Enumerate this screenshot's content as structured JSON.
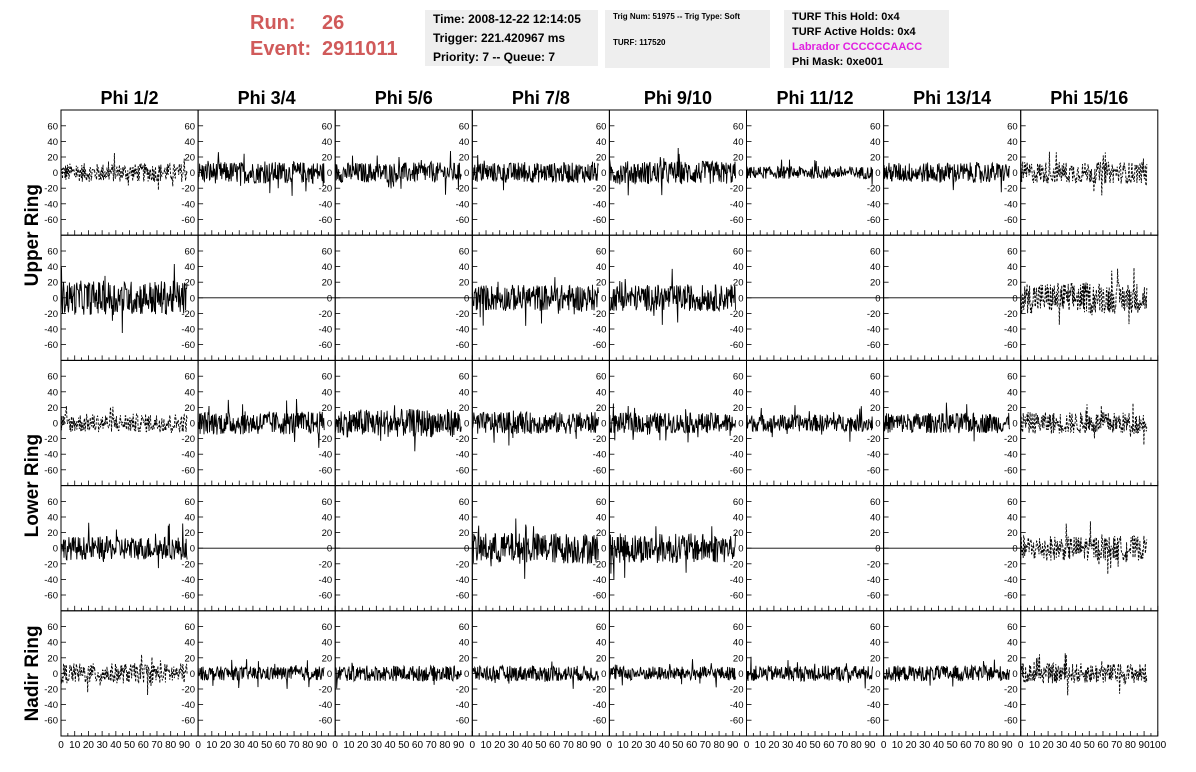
{
  "header": {
    "run_label": "Run:",
    "run_value": "26",
    "event_label": "Event:",
    "event_value": "2911011",
    "time": "Time: 2008-12-22 12:14:05",
    "trigger": "Trigger: 221.420967 ms",
    "priority": "Priority: 7 -- Queue: 7",
    "trig_num": "Trig Num: 51975 -- Trig Type: Soft",
    "turf": "TURF: 117520",
    "turf_this_hold": "TURF This Hold: 0x4",
    "turf_active_holds": "TURF Active Holds: 0x4",
    "labrador": "Labrador CCCCCCAACC",
    "phi_mask": "Phi Mask: 0xe001",
    "colors": {
      "run_text": "#d05a5a",
      "labrador": "#e020e0",
      "box_bg": "#eeeeee"
    }
  },
  "chart_data": {
    "type": "line",
    "columns": [
      "Phi 1/2",
      "Phi 3/4",
      "Phi 5/6",
      "Phi 7/8",
      "Phi 9/10",
      "Phi 11/12",
      "Phi 13/14",
      "Phi 15/16"
    ],
    "ring_labels": [
      "Upper Ring",
      "Lower Ring",
      "Nadir Ring"
    ],
    "rows": 5,
    "xlim": [
      0,
      100
    ],
    "ylim": [
      -70,
      70
    ],
    "y_ticks": [
      -60,
      -40,
      -20,
      0,
      20,
      40,
      60
    ],
    "x_ticks": [
      0,
      10,
      20,
      30,
      40,
      50,
      60,
      70,
      80,
      90,
      100
    ],
    "x_tick_labels": [
      "0",
      "10",
      "20",
      "30",
      "40",
      "50",
      "60",
      "70",
      "80",
      "90",
      "100"
    ],
    "y_tick_labels": [
      "-60",
      "-40",
      "-20",
      "0",
      "20",
      "40",
      "60"
    ],
    "n_samples": 256,
    "x_end": 92,
    "panels": [
      [
        {
          "a": 12,
          "d": 1
        },
        {
          "a": 14,
          "d": 0
        },
        {
          "a": 13,
          "d": 0
        },
        {
          "a": 13,
          "d": 0
        },
        {
          "a": 15,
          "d": 0
        },
        {
          "a": 8,
          "d": 0
        },
        {
          "a": 13,
          "d": 0
        },
        {
          "a": 14,
          "d": 1
        }
      ],
      [
        {
          "a": 22,
          "d": 0
        },
        {
          "a": 0,
          "d": 0
        },
        {
          "a": 0,
          "d": 0
        },
        {
          "a": 17,
          "d": 0
        },
        {
          "a": 17,
          "d": 0
        },
        {
          "a": 0,
          "d": 0
        },
        {
          "a": 0,
          "d": 0
        },
        {
          "a": 20,
          "d": 1
        }
      ],
      [
        {
          "a": 12,
          "d": 1
        },
        {
          "a": 15,
          "d": 0
        },
        {
          "a": 18,
          "d": 0
        },
        {
          "a": 14,
          "d": 0
        },
        {
          "a": 13,
          "d": 0
        },
        {
          "a": 11,
          "d": 0
        },
        {
          "a": 13,
          "d": 0
        },
        {
          "a": 14,
          "d": 1
        }
      ],
      [
        {
          "a": 15,
          "d": 0
        },
        {
          "a": 0,
          "d": 0
        },
        {
          "a": 0,
          "d": 0
        },
        {
          "a": 20,
          "d": 0
        },
        {
          "a": 19,
          "d": 0
        },
        {
          "a": 0,
          "d": 0
        },
        {
          "a": 0,
          "d": 0
        },
        {
          "a": 16,
          "d": 1
        }
      ],
      [
        {
          "a": 13,
          "d": 1
        },
        {
          "a": 9,
          "d": 0
        },
        {
          "a": 10,
          "d": 0
        },
        {
          "a": 10,
          "d": 0
        },
        {
          "a": 9,
          "d": 0
        },
        {
          "a": 10,
          "d": 0
        },
        {
          "a": 10,
          "d": 0
        },
        {
          "a": 13,
          "d": 1
        }
      ]
    ]
  }
}
